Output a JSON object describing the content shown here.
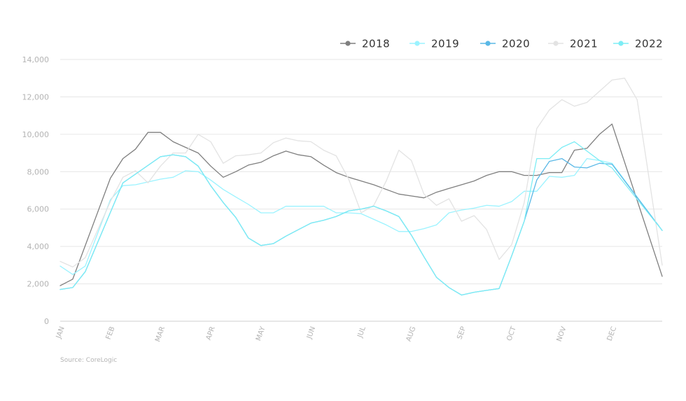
{
  "chart_data": {
    "type": "line",
    "title": "",
    "xlabel": "",
    "ylabel": "",
    "ylim": [
      0,
      14000
    ],
    "yticks": [
      0,
      2000,
      4000,
      6000,
      8000,
      10000,
      12000,
      14000
    ],
    "ytick_labels": [
      "0",
      "2,000",
      "4,000",
      "6,000",
      "8,000",
      "10,000",
      "12,000",
      "14,000"
    ],
    "months": [
      "JAN",
      "FEB",
      "MAR",
      "APR",
      "MAY",
      "JUN",
      "JUL",
      "AUG",
      "SEP",
      "OCT",
      "NOV",
      "DEC"
    ],
    "xlim": [
      0,
      12
    ],
    "grid": true,
    "legend_position": "top-right",
    "source": "Source: CoreLogic",
    "series": [
      {
        "name": "2018",
        "color": "#7f7f7f",
        "x": [
          0,
          0.25,
          1,
          1.25,
          1.5,
          1.75,
          2,
          2.25,
          2.5,
          2.75,
          3,
          3.25,
          3.5,
          3.75,
          4,
          4.25,
          4.5,
          4.75,
          5,
          5.25,
          5.5,
          5.75,
          6,
          6.25,
          6.5,
          6.75,
          7,
          7.25,
          7.5,
          7.75,
          8,
          8.25,
          8.5,
          8.75,
          9,
          9.25,
          9.5,
          9.75,
          10,
          10.25,
          10.5,
          10.75,
          11,
          12
        ],
        "y": [
          1900,
          2250,
          7650,
          8700,
          9200,
          10100,
          10100,
          9600,
          9300,
          9000,
          8300,
          7700,
          8000,
          8350,
          8500,
          8850,
          9100,
          8900,
          8800,
          8350,
          7950,
          7700,
          7500,
          7300,
          7050,
          6800,
          6700,
          6600,
          6900,
          7100,
          7300,
          7500,
          7800,
          8000,
          8000,
          7800,
          7800,
          7950,
          7950,
          9150,
          9250,
          10000,
          10550,
          2400
        ]
      },
      {
        "name": "2019",
        "color": "#9bf3ff",
        "x": [
          0,
          0.25,
          0.5,
          1,
          1.25,
          1.5,
          1.75,
          2,
          2.25,
          2.5,
          2.75,
          3,
          3.25,
          3.5,
          3.75,
          4,
          4.25,
          4.5,
          4.75,
          5,
          5.25,
          5.5,
          5.75,
          6,
          6.25,
          6.5,
          6.75,
          7,
          7.25,
          7.5,
          7.75,
          8,
          8.25,
          8.5,
          8.75,
          9,
          9.25,
          9.5,
          9.75,
          10,
          10.25,
          10.5,
          10.75,
          11,
          12
        ],
        "y": [
          2950,
          2500,
          2950,
          6500,
          7250,
          7300,
          7450,
          7600,
          7700,
          8050,
          8000,
          7550,
          7050,
          6650,
          6250,
          5800,
          5800,
          6150,
          6150,
          6150,
          6150,
          5800,
          5800,
          5750,
          5450,
          5150,
          4800,
          4800,
          4950,
          5150,
          5800,
          5950,
          6050,
          6200,
          6150,
          6400,
          6950,
          6950,
          7750,
          7700,
          7800,
          8700,
          8600,
          8450,
          4850
        ]
      },
      {
        "name": "2020",
        "color": "#5ab8e6",
        "x": [
          0,
          0.25,
          0.5,
          1.25,
          2,
          2.25,
          2.5,
          2.75,
          3,
          3.25,
          3.5,
          3.75,
          4,
          4.25,
          4.5,
          4.75,
          5,
          5.25,
          5.5,
          5.75,
          6,
          6.25,
          6.5,
          6.75,
          7,
          7.25,
          7.5,
          7.75,
          8,
          8.25,
          8.5,
          8.75,
          9,
          9.25,
          9.5,
          9.75,
          10,
          10.25,
          10.5,
          10.75,
          11,
          12
        ],
        "y": [
          1700,
          1800,
          2650,
          7400,
          8800,
          8900,
          8800,
          8300,
          7250,
          6350,
          5550,
          4450,
          4050,
          4150,
          4550,
          4900,
          5250,
          5400,
          5600,
          5900,
          6000,
          6150,
          5900,
          5600,
          4600,
          3450,
          2350,
          1800,
          1400,
          1550,
          1650,
          1750,
          3500,
          5350,
          7550,
          8550,
          8700,
          8250,
          8200,
          8450,
          8400,
          4850
        ]
      },
      {
        "name": "2021",
        "color": "#e3e3e3",
        "x": [
          0,
          0.25,
          0.5,
          1,
          1.25,
          1.5,
          1.75,
          2,
          2.25,
          2.5,
          2.75,
          3,
          3.25,
          3.5,
          3.75,
          4,
          4.25,
          4.5,
          4.75,
          5,
          5.25,
          5.5,
          5.75,
          6,
          6.25,
          6.5,
          6.75,
          7,
          7.25,
          7.5,
          7.75,
          8,
          8.25,
          8.5,
          8.75,
          9,
          9.25,
          9.5,
          9.75,
          10,
          10.25,
          10.5,
          10.75,
          11,
          11.25,
          11.5,
          12
        ],
        "y": [
          3200,
          2900,
          3400,
          6400,
          7700,
          8050,
          7400,
          8300,
          9000,
          9000,
          10000,
          9600,
          8450,
          8850,
          8900,
          9000,
          9550,
          9800,
          9650,
          9600,
          9150,
          8850,
          7600,
          5800,
          6200,
          7500,
          9150,
          8600,
          6800,
          6200,
          6550,
          5350,
          5650,
          4900,
          3300,
          4100,
          6350,
          10300,
          11300,
          11850,
          11500,
          11700,
          12300,
          12900,
          13000,
          11850,
          3000
        ]
      },
      {
        "name": "2022",
        "color": "#7dedf5",
        "x": [
          0,
          0.25,
          0.5,
          1.25,
          2,
          2.25,
          2.5,
          2.75,
          3,
          3.25,
          3.5,
          3.75,
          4,
          4.25,
          4.5,
          4.75,
          5,
          5.25,
          5.5,
          5.75,
          6,
          6.25,
          6.5,
          6.75,
          7,
          7.25,
          7.5,
          7.75,
          8,
          8.25,
          8.5,
          8.75,
          9,
          9.25,
          9.5,
          9.75,
          10,
          10.25,
          10.5,
          10.75,
          11,
          12
        ],
        "y": [
          1700,
          1800,
          2650,
          7400,
          8800,
          8900,
          8800,
          8300,
          7250,
          6350,
          5550,
          4450,
          4050,
          4150,
          4550,
          4900,
          5250,
          5400,
          5600,
          5900,
          6000,
          6150,
          5900,
          5600,
          4600,
          3450,
          2350,
          1800,
          1400,
          1550,
          1650,
          1750,
          3500,
          5350,
          8700,
          8700,
          9300,
          9600,
          9100,
          8600,
          8200,
          4850
        ]
      }
    ]
  }
}
